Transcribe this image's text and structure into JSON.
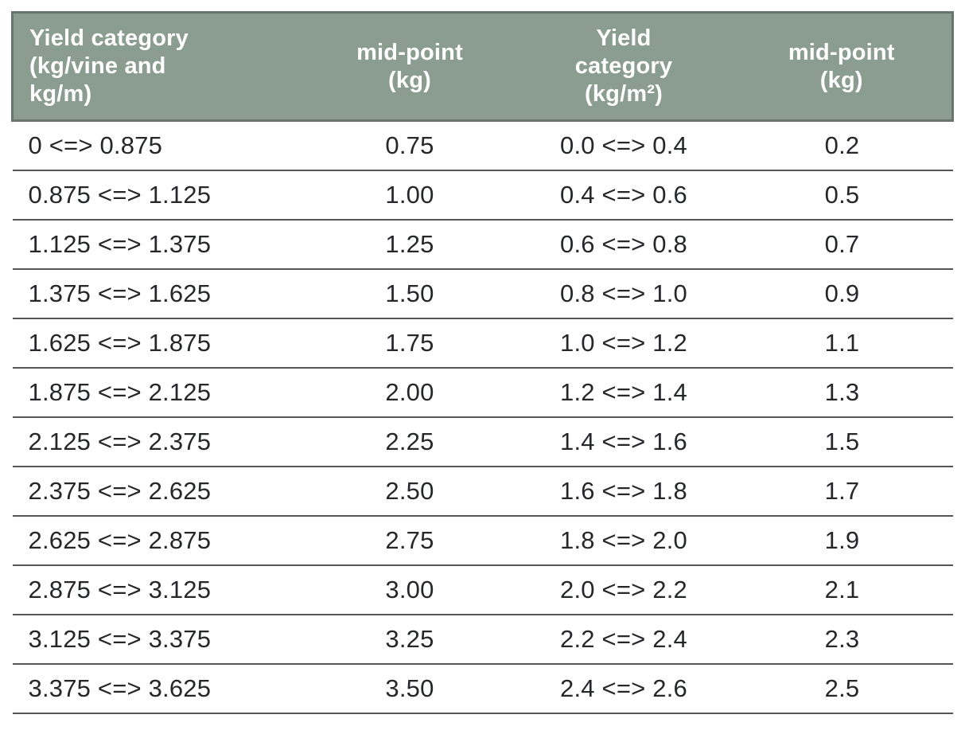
{
  "table": {
    "columns": [
      {
        "id": "yield-category-vine",
        "label": "Yield category\n(kg/vine and\nkg/m)",
        "align": "left"
      },
      {
        "id": "mid-point-kg-1",
        "label": "mid-point\n(kg)",
        "align": "center"
      },
      {
        "id": "yield-category-m2",
        "label": "Yield\ncategory\n(kg/m²)",
        "align": "center"
      },
      {
        "id": "mid-point-kg-2",
        "label": "mid-point\n(kg)",
        "align": "center"
      }
    ],
    "rows": [
      [
        "0 <=> 0.875",
        "0.75",
        "0.0 <=> 0.4",
        "0.2"
      ],
      [
        "0.875 <=> 1.125",
        "1.00",
        "0.4 <=> 0.6",
        "0.5"
      ],
      [
        "1.125 <=> 1.375",
        "1.25",
        "0.6 <=> 0.8",
        "0.7"
      ],
      [
        "1.375 <=> 1.625",
        "1.50",
        "0.8 <=> 1.0",
        "0.9"
      ],
      [
        "1.625 <=> 1.875",
        "1.75",
        "1.0 <=> 1.2",
        "1.1"
      ],
      [
        "1.875 <=> 2.125",
        "2.00",
        "1.2 <=> 1.4",
        "1.3"
      ],
      [
        "2.125 <=> 2.375",
        "2.25",
        "1.4 <=> 1.6",
        "1.5"
      ],
      [
        "2.375 <=> 2.625",
        "2.50",
        "1.6 <=> 1.8",
        "1.7"
      ],
      [
        "2.625 <=> 2.875",
        "2.75",
        "1.8 <=> 2.0",
        "1.9"
      ],
      [
        "2.875 <=> 3.125",
        "3.00",
        "2.0 <=> 2.2",
        "2.1"
      ],
      [
        "3.125 <=> 3.375",
        "3.25",
        "2.2 <=> 2.4",
        "2.3"
      ],
      [
        "3.375 <=> 3.625",
        "3.50",
        "2.4 <=> 2.6",
        "2.5"
      ]
    ]
  },
  "colors": {
    "header_bg": "#8b9c90",
    "header_border": "#66766c",
    "header_text": "#ffffff",
    "row_divider": "#55565a",
    "body_text": "#26272b",
    "page_bg": "#ffffff"
  }
}
